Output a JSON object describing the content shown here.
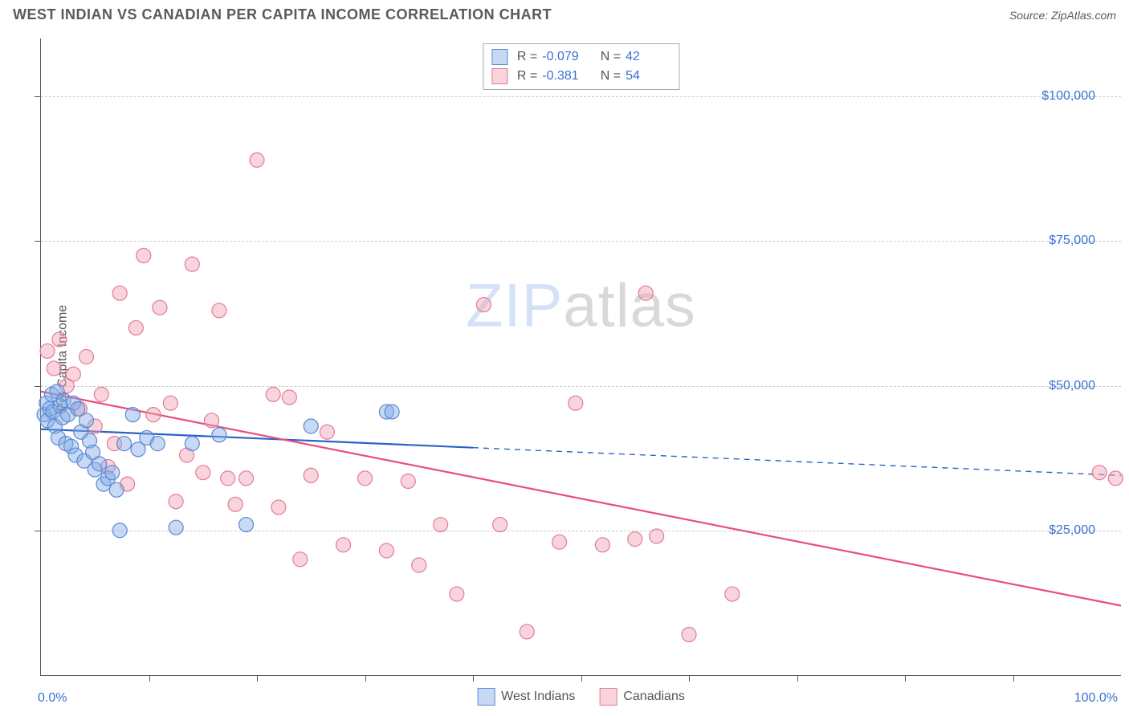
{
  "header": {
    "title": "WEST INDIAN VS CANADIAN PER CAPITA INCOME CORRELATION CHART",
    "source": "Source: ZipAtlas.com"
  },
  "watermark": {
    "zip": "ZIP",
    "atlas": "atlas"
  },
  "chart": {
    "type": "scatter",
    "ylabel": "Per Capita Income",
    "xlim": [
      0,
      100
    ],
    "ylim": [
      0,
      110000
    ],
    "y_gridlines": [
      25000,
      50000,
      75000,
      100000
    ],
    "y_tick_labels": {
      "25000": "$25,000",
      "50000": "$50,000",
      "75000": "$75,000",
      "100000": "$100,000"
    },
    "x_ticks": [
      10,
      20,
      30,
      40,
      50,
      60,
      70,
      80,
      90
    ],
    "x_axis_labels": {
      "left": "0.0%",
      "right": "100.0%"
    },
    "grid_color": "#cccccc",
    "background_color": "#ffffff",
    "axis_color": "#555555",
    "tick_label_color": "#3b6fd4",
    "marker_radius": 9,
    "marker_stroke_width": 1.2,
    "trend_line_width": 2.2,
    "series": [
      {
        "name": "West Indians",
        "fill_color": "rgba(130,170,230,0.45)",
        "stroke_color": "#5a8ad0",
        "line_color": "#2c62c8",
        "points": [
          [
            0.3,
            45000
          ],
          [
            0.5,
            47000
          ],
          [
            0.6,
            44000
          ],
          [
            0.8,
            46000
          ],
          [
            1.0,
            48500
          ],
          [
            1.1,
            45500
          ],
          [
            1.3,
            43000
          ],
          [
            1.5,
            49000
          ],
          [
            1.6,
            41000
          ],
          [
            1.8,
            46500
          ],
          [
            2.0,
            44500
          ],
          [
            2.1,
            47500
          ],
          [
            2.3,
            40000
          ],
          [
            2.5,
            45000
          ],
          [
            2.8,
            39500
          ],
          [
            3.0,
            47000
          ],
          [
            3.2,
            38000
          ],
          [
            3.4,
            46000
          ],
          [
            3.7,
            42000
          ],
          [
            4.0,
            37000
          ],
          [
            4.2,
            44000
          ],
          [
            4.5,
            40500
          ],
          [
            4.8,
            38500
          ],
          [
            5.0,
            35500
          ],
          [
            5.4,
            36500
          ],
          [
            5.8,
            33000
          ],
          [
            6.2,
            34000
          ],
          [
            6.6,
            35000
          ],
          [
            7.0,
            32000
          ],
          [
            7.3,
            25000
          ],
          [
            7.7,
            40000
          ],
          [
            8.5,
            45000
          ],
          [
            9.0,
            39000
          ],
          [
            9.8,
            41000
          ],
          [
            10.8,
            40000
          ],
          [
            12.5,
            25500
          ],
          [
            14.0,
            40000
          ],
          [
            16.5,
            41500
          ],
          [
            19.0,
            26000
          ],
          [
            25.0,
            43000
          ],
          [
            32.0,
            45500
          ],
          [
            32.5,
            45500
          ]
        ],
        "trend": {
          "y_at_x0": 42500,
          "y_at_x100": 34500,
          "solid_until_x": 40
        }
      },
      {
        "name": "Canadians",
        "fill_color": "rgba(240,160,180,0.45)",
        "stroke_color": "#e47a9a",
        "line_color": "#e94f7a",
        "points": [
          [
            0.6,
            56000
          ],
          [
            1.2,
            53000
          ],
          [
            1.7,
            58000
          ],
          [
            2.4,
            50000
          ],
          [
            3.0,
            52000
          ],
          [
            3.6,
            46000
          ],
          [
            4.2,
            55000
          ],
          [
            5.0,
            43000
          ],
          [
            5.6,
            48500
          ],
          [
            6.2,
            36000
          ],
          [
            6.8,
            40000
          ],
          [
            7.3,
            66000
          ],
          [
            8.0,
            33000
          ],
          [
            8.8,
            60000
          ],
          [
            9.5,
            72500
          ],
          [
            10.4,
            45000
          ],
          [
            11.0,
            63500
          ],
          [
            12.0,
            47000
          ],
          [
            12.5,
            30000
          ],
          [
            13.5,
            38000
          ],
          [
            14.0,
            71000
          ],
          [
            15.0,
            35000
          ],
          [
            15.8,
            44000
          ],
          [
            16.5,
            63000
          ],
          [
            17.3,
            34000
          ],
          [
            18.0,
            29500
          ],
          [
            19.0,
            34000
          ],
          [
            20.0,
            89000
          ],
          [
            21.5,
            48500
          ],
          [
            22.0,
            29000
          ],
          [
            23.0,
            48000
          ],
          [
            24.0,
            20000
          ],
          [
            25.0,
            34500
          ],
          [
            26.5,
            42000
          ],
          [
            28.0,
            22500
          ],
          [
            30.0,
            34000
          ],
          [
            32.0,
            21500
          ],
          [
            34.0,
            33500
          ],
          [
            35.0,
            19000
          ],
          [
            37.0,
            26000
          ],
          [
            38.5,
            14000
          ],
          [
            41.0,
            64000
          ],
          [
            42.5,
            26000
          ],
          [
            45.0,
            7500
          ],
          [
            48.0,
            23000
          ],
          [
            49.5,
            47000
          ],
          [
            52.0,
            22500
          ],
          [
            55.0,
            23500
          ],
          [
            56.0,
            66000
          ],
          [
            57.0,
            24000
          ],
          [
            60.0,
            7000
          ],
          [
            64.0,
            14000
          ],
          [
            98.0,
            35000
          ],
          [
            99.5,
            34000
          ]
        ],
        "trend": {
          "y_at_x0": 49000,
          "y_at_x100": 12000,
          "solid_until_x": 100
        }
      }
    ],
    "stats": [
      {
        "series_idx": 0,
        "r_label": "R =",
        "r": "-0.079",
        "n_label": "N =",
        "n": "42"
      },
      {
        "series_idx": 1,
        "r_label": "R =",
        "r": "-0.381",
        "n_label": "N =",
        "n": "54"
      }
    ],
    "legend_bottom": [
      {
        "series_idx": 0,
        "label": "West Indians"
      },
      {
        "series_idx": 1,
        "label": "Canadians"
      }
    ]
  }
}
